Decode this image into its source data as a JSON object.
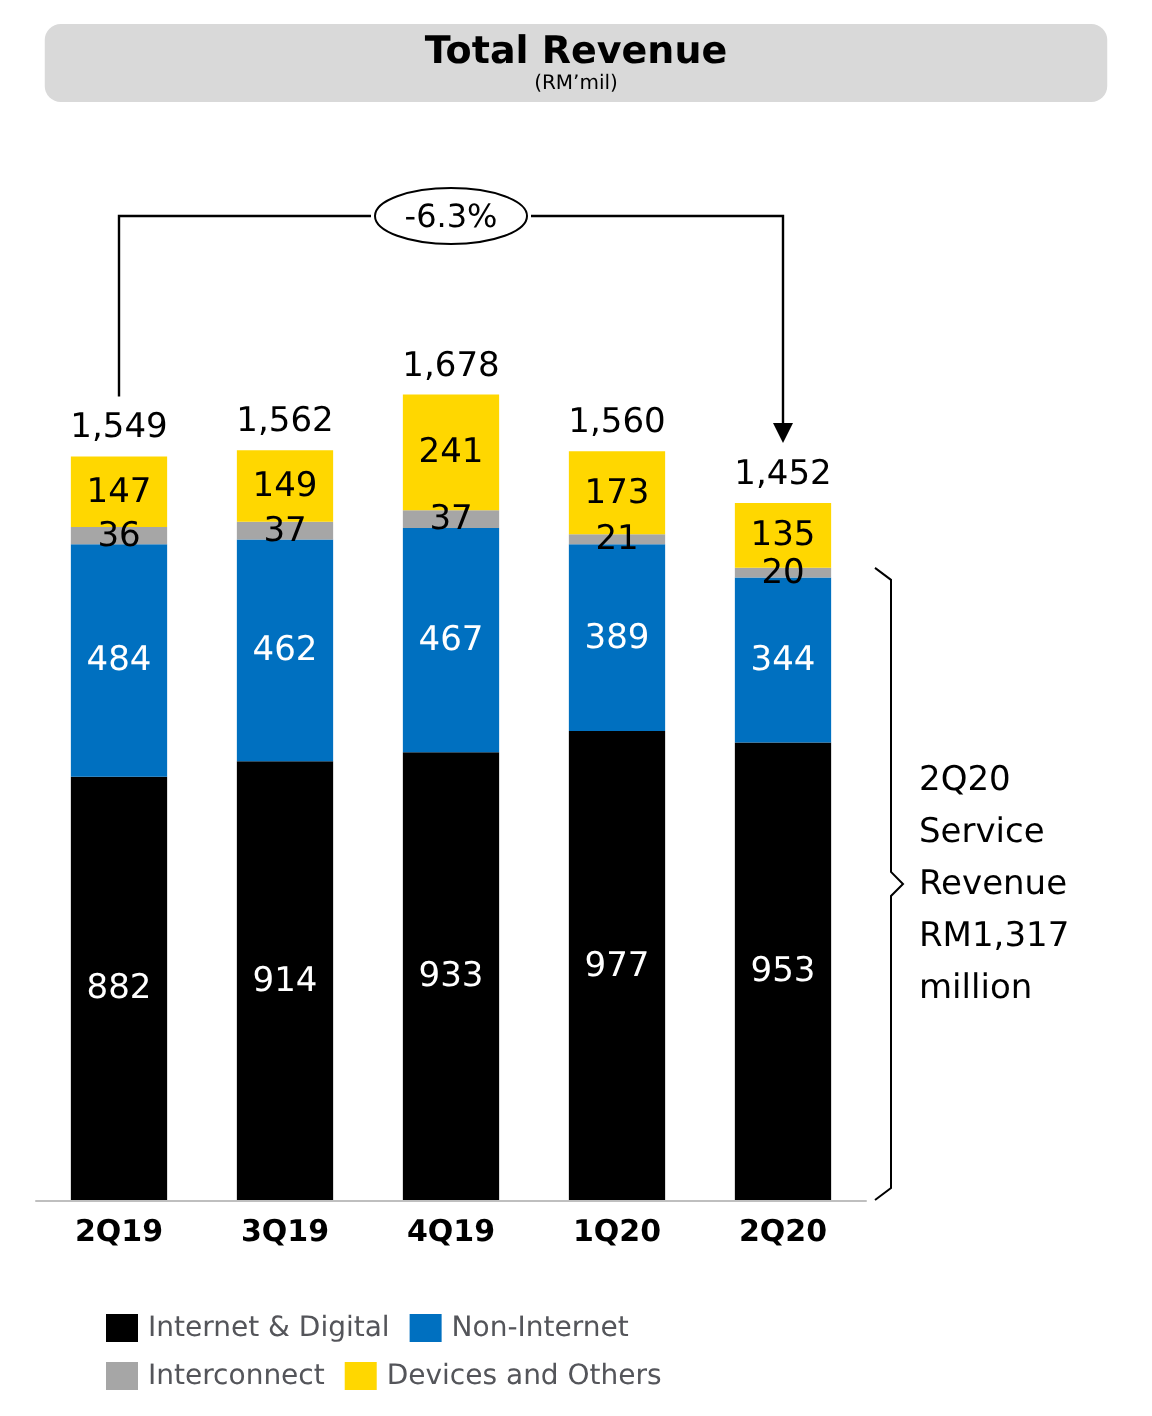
{
  "chart_data": {
    "type": "bar",
    "title": "Total Revenue",
    "subtitle": "(RM’mil)",
    "categories": [
      "2Q19",
      "3Q19",
      "4Q19",
      "1Q20",
      "2Q20"
    ],
    "stacked": true,
    "data_labels": true,
    "legend": "bottom",
    "series": [
      {
        "name": "Internet & Digital",
        "color": "#000000",
        "values": [
          882,
          914,
          933,
          977,
          953
        ]
      },
      {
        "name": "Non-Internet",
        "color": "#0070c0",
        "values": [
          484,
          462,
          467,
          389,
          344
        ]
      },
      {
        "name": "Interconnect",
        "color": "#a6a6a6",
        "values": [
          36,
          37,
          37,
          21,
          20
        ]
      },
      {
        "name": "Devices and Others",
        "color": "#ffd700",
        "values": [
          147,
          149,
          241,
          173,
          135
        ]
      }
    ],
    "totals": [
      "1,549",
      "1,562",
      "1,678",
      "1,560",
      "1,452"
    ],
    "annotations": [
      "-6.3%",
      "2Q20 Service Revenue RM1,317 million"
    ]
  }
}
